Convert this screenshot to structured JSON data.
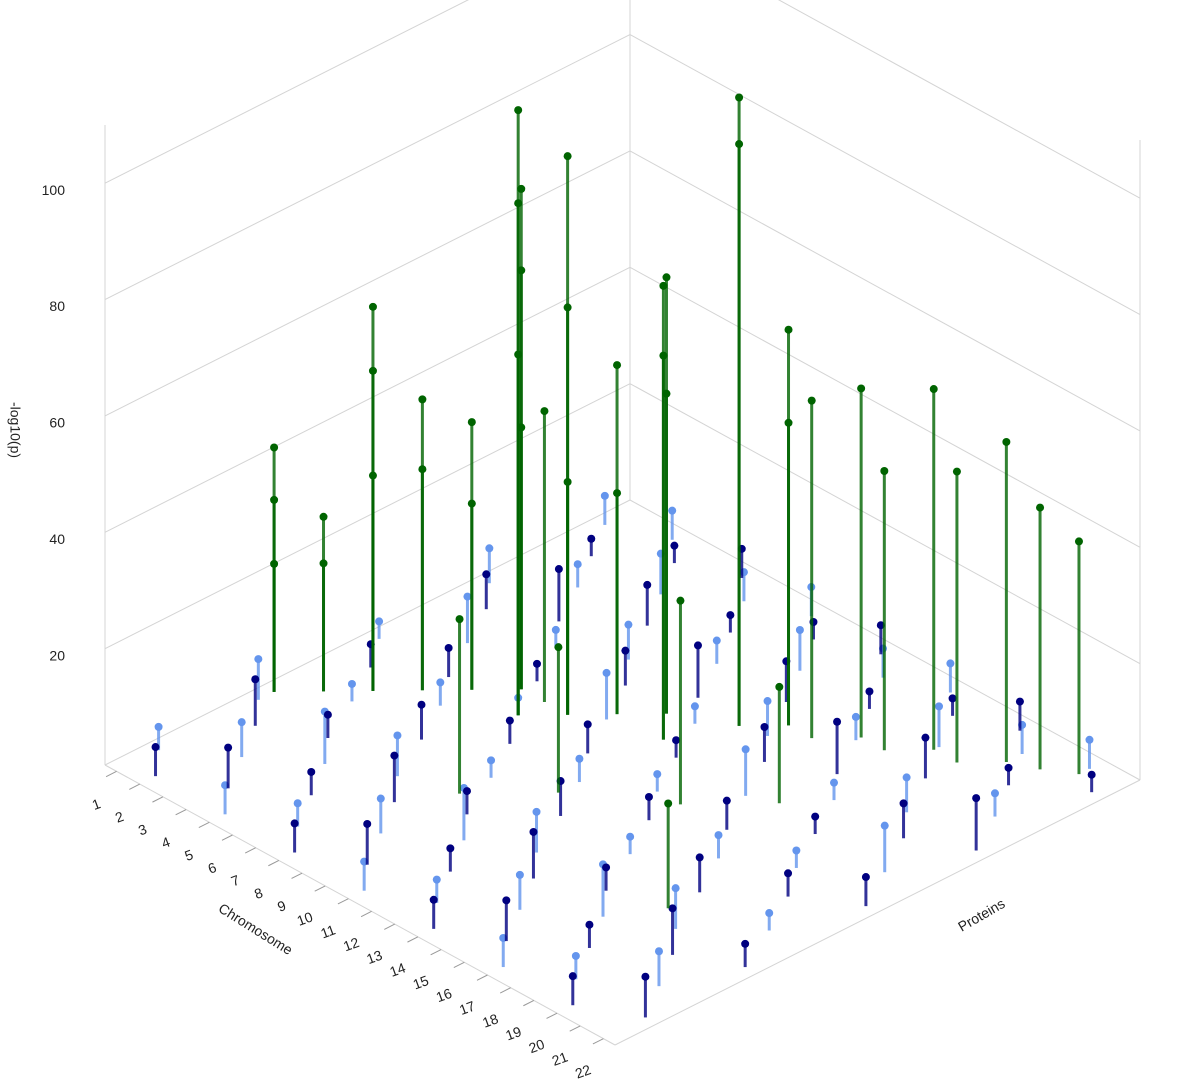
{
  "chart_data": {
    "type": "manhattan3d",
    "zlabel": "-log10(p)",
    "xlabel": "Chromosome",
    "ylabel": "Proteins",
    "categories": [
      "1",
      "2",
      "3",
      "4",
      "5",
      "6",
      "7",
      "8",
      "9",
      "10",
      "11",
      "12",
      "13",
      "14",
      "15",
      "16",
      "17",
      "18",
      "19",
      "20",
      "21",
      "22"
    ],
    "ylim": [
      0,
      1
    ],
    "zlim": [
      0,
      110
    ],
    "zticks": [
      20,
      40,
      60,
      80,
      100
    ],
    "grid": true,
    "series": [
      {
        "color": "#6495ed",
        "x": [
          1,
          1,
          1,
          1,
          1,
          3,
          3,
          3,
          3,
          3,
          5,
          5,
          5,
          5,
          5,
          7,
          7,
          7,
          7,
          7,
          9,
          9,
          9,
          9,
          9,
          11,
          11,
          11,
          11,
          11,
          13,
          13,
          13,
          13,
          13,
          15,
          15,
          15,
          15,
          15,
          17,
          17,
          17,
          17,
          17,
          19,
          19,
          19,
          19,
          19,
          21,
          21,
          21,
          21,
          21
        ],
        "y": [
          0.08,
          0.27,
          0.5,
          0.71,
          0.93,
          0.15,
          0.36,
          0.58,
          0.79,
          0.97,
          0.03,
          0.22,
          0.44,
          0.66,
          0.86,
          0.08,
          0.27,
          0.5,
          0.71,
          0.93,
          0.15,
          0.36,
          0.58,
          0.79,
          0.97,
          0.03,
          0.22,
          0.44,
          0.66,
          0.86,
          0.08,
          0.27,
          0.5,
          0.71,
          0.93,
          0.15,
          0.36,
          0.58,
          0.79,
          0.97,
          0.03,
          0.22,
          0.44,
          0.66,
          0.86,
          0.08,
          0.27,
          0.5,
          0.71,
          0.93,
          0.15,
          0.36,
          0.58,
          0.79,
          0.97
        ],
        "z": [
          4,
          7,
          3,
          6,
          5,
          6,
          3,
          8,
          4,
          5,
          5,
          9,
          4,
          3,
          7,
          4,
          7,
          3,
          6,
          5,
          6,
          3,
          8,
          4,
          5,
          5,
          9,
          4,
          3,
          7,
          4,
          7,
          3,
          6,
          5,
          6,
          3,
          8,
          4,
          5,
          5,
          9,
          4,
          3,
          7,
          4,
          7,
          3,
          6,
          5,
          6,
          3,
          8,
          4,
          5
        ]
      },
      {
        "color": "#000080",
        "x": [
          2,
          2,
          2,
          2,
          2,
          4,
          4,
          4,
          4,
          4,
          6,
          6,
          6,
          6,
          6,
          8,
          8,
          8,
          8,
          8,
          10,
          10,
          10,
          10,
          10,
          12,
          12,
          12,
          12,
          12,
          14,
          14,
          14,
          14,
          14,
          16,
          16,
          16,
          16,
          16,
          18,
          18,
          18,
          18,
          18,
          20,
          20,
          20,
          20,
          20,
          22,
          22,
          22,
          22,
          22
        ],
        "y": [
          0.03,
          0.22,
          0.44,
          0.66,
          0.86,
          0.08,
          0.27,
          0.5,
          0.71,
          0.93,
          0.15,
          0.36,
          0.58,
          0.79,
          0.97,
          0.03,
          0.22,
          0.44,
          0.66,
          0.86,
          0.08,
          0.27,
          0.5,
          0.71,
          0.93,
          0.15,
          0.36,
          0.58,
          0.79,
          0.97,
          0.03,
          0.22,
          0.44,
          0.66,
          0.86,
          0.08,
          0.27,
          0.5,
          0.71,
          0.93,
          0.15,
          0.36,
          0.58,
          0.79,
          0.97,
          0.03,
          0.22,
          0.44,
          0.66,
          0.86,
          0.08,
          0.27,
          0.5,
          0.71,
          0.93
        ],
        "z": [
          5,
          8,
          4,
          6,
          3,
          7,
          4,
          5,
          9,
          3,
          4,
          6,
          3,
          7,
          5,
          5,
          8,
          4,
          6,
          3,
          7,
          4,
          5,
          9,
          3,
          4,
          6,
          3,
          7,
          5,
          5,
          8,
          4,
          6,
          3,
          7,
          4,
          5,
          9,
          3,
          4,
          6,
          3,
          7,
          5,
          5,
          8,
          4,
          6,
          3,
          7,
          4,
          5,
          9,
          3
        ]
      },
      {
        "color": "#006400",
        "x": [
          1,
          1,
          1,
          2,
          2,
          3,
          3,
          3,
          4,
          4,
          5,
          5,
          6,
          6,
          6,
          7,
          7,
          7,
          7,
          8,
          8,
          8,
          9,
          9,
          10,
          10,
          11,
          11,
          12,
          12,
          13,
          13,
          14,
          15,
          16,
          17,
          18,
          19,
          20,
          21,
          9,
          11,
          14,
          16,
          18
        ],
        "y": [
          0.3,
          0.3,
          0.3,
          0.35,
          0.35,
          0.4,
          0.4,
          0.4,
          0.45,
          0.45,
          0.5,
          0.5,
          0.55,
          0.55,
          0.55,
          0.5,
          0.5,
          0.5,
          0.55,
          0.55,
          0.55,
          0.55,
          0.6,
          0.6,
          0.65,
          0.65,
          0.6,
          0.6,
          0.7,
          0.7,
          0.75,
          0.75,
          0.75,
          0.8,
          0.8,
          0.85,
          0.85,
          0.9,
          0.92,
          0.95,
          0.3,
          0.4,
          0.5,
          0.6,
          0.3
        ],
        "z": [
          42,
          33,
          22,
          22,
          30,
          66,
          55,
          37,
          50,
          38,
          46,
          32,
          86,
          72,
          45,
          104,
          88,
          62,
          50,
          96,
          70,
          40,
          60,
          38,
          75,
          55,
          78,
          66,
          108,
          100,
          68,
          52,
          58,
          60,
          48,
          62,
          50,
          55,
          45,
          40,
          30,
          25,
          35,
          20,
          18
        ]
      }
    ]
  }
}
